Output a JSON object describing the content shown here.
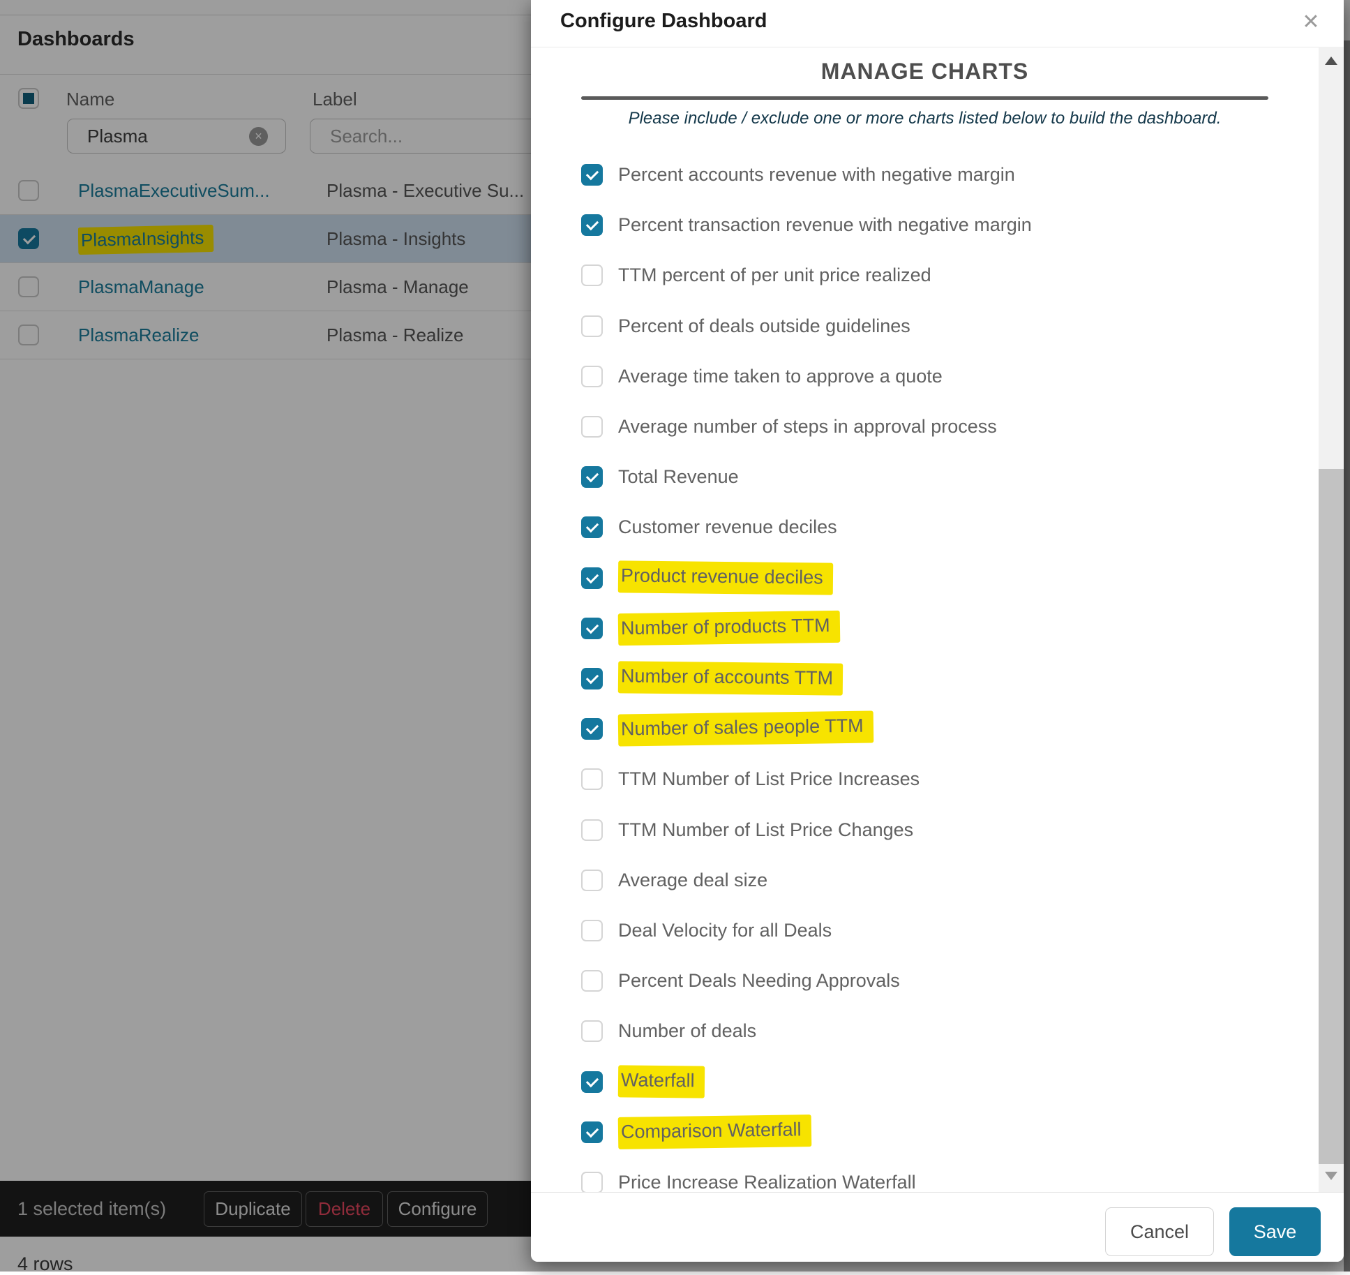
{
  "page": {
    "title": "Dashboards",
    "table": {
      "columns": {
        "name": "Name",
        "label": "Label"
      },
      "name_filter_value": "Plasma",
      "label_filter_placeholder": "Search...",
      "header_checkbox_state": "indeterminate",
      "rows": [
        {
          "name": "PlasmaExecutiveSum...",
          "label": "Plasma - Executive Su...",
          "checked": false,
          "selected": false,
          "highlighted": false
        },
        {
          "name": "PlasmaInsights",
          "label": "Plasma - Insights",
          "checked": true,
          "selected": true,
          "highlighted": true
        },
        {
          "name": "PlasmaManage",
          "label": "Plasma - Manage",
          "checked": false,
          "selected": false,
          "highlighted": false
        },
        {
          "name": "PlasmaRealize",
          "label": "Plasma - Realize",
          "checked": false,
          "selected": false,
          "highlighted": false
        }
      ]
    },
    "action_bar": {
      "selection_text": "1 selected item(s)",
      "duplicate_label": "Duplicate",
      "delete_label": "Delete",
      "configure_label": "Configure"
    },
    "rows_count_text": "4 rows",
    "clear_icon_glyph": "×"
  },
  "modal": {
    "title": "Configure Dashboard",
    "close_icon_glyph": "✕",
    "section_title": "MANAGE CHARTS",
    "subtitle": "Please include / exclude one or more charts listed below to build the dashboard.",
    "charts": [
      {
        "label": "Percent accounts revenue with negative margin",
        "checked": true,
        "highlighted": false
      },
      {
        "label": "Percent transaction revenue with negative margin",
        "checked": true,
        "highlighted": false
      },
      {
        "label": "TTM percent of per unit price realized",
        "checked": false,
        "highlighted": false
      },
      {
        "label": "Percent of deals outside guidelines",
        "checked": false,
        "highlighted": false
      },
      {
        "label": "Average time taken to approve a quote",
        "checked": false,
        "highlighted": false
      },
      {
        "label": "Average number of steps in approval process",
        "checked": false,
        "highlighted": false
      },
      {
        "label": "Total Revenue",
        "checked": true,
        "highlighted": false
      },
      {
        "label": "Customer revenue deciles",
        "checked": true,
        "highlighted": false
      },
      {
        "label": "Product revenue deciles",
        "checked": true,
        "highlighted": true
      },
      {
        "label": "Number of products TTM",
        "checked": true,
        "highlighted": true
      },
      {
        "label": "Number of accounts TTM",
        "checked": true,
        "highlighted": true
      },
      {
        "label": "Number of sales people TTM",
        "checked": true,
        "highlighted": true
      },
      {
        "label": "TTM Number of List Price Increases",
        "checked": false,
        "highlighted": false
      },
      {
        "label": "TTM Number of List Price Changes",
        "checked": false,
        "highlighted": false
      },
      {
        "label": "Average deal size",
        "checked": false,
        "highlighted": false
      },
      {
        "label": "Deal Velocity for all Deals",
        "checked": false,
        "highlighted": false
      },
      {
        "label": "Percent Deals Needing Approvals",
        "checked": false,
        "highlighted": false
      },
      {
        "label": "Number of deals",
        "checked": false,
        "highlighted": false
      },
      {
        "label": "Waterfall",
        "checked": true,
        "highlighted": true
      },
      {
        "label": "Comparison Waterfall",
        "checked": true,
        "highlighted": true
      },
      {
        "label": "Price Increase Realization Waterfall",
        "checked": false,
        "highlighted": false
      }
    ],
    "footer": {
      "cancel_label": "Cancel",
      "save_label": "Save"
    }
  },
  "colors": {
    "accent_teal": "#15789e",
    "highlight_yellow": "#f7e300",
    "link_teal": "#1b7d9c",
    "delete_red": "#e8485f",
    "selected_row": "#cfe0f0",
    "action_bar_bg": "#1f1f1f"
  }
}
